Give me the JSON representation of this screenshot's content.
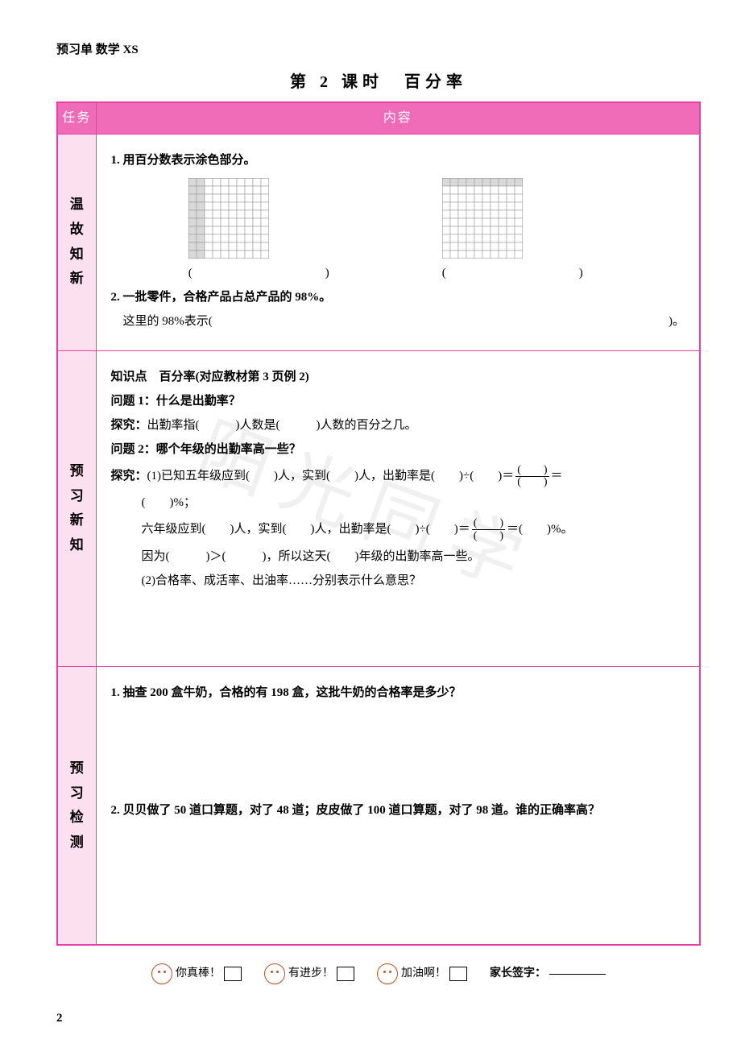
{
  "header": {
    "label": "预习单 数学 XS"
  },
  "title": "第 2 课时　百分率",
  "table_headers": {
    "task": "任务",
    "content": "内容"
  },
  "sections": {
    "s1": {
      "side": "温故知新",
      "q1": "1. 用百分数表示涂色部分。",
      "paren": "(　　　)",
      "q2": "2. 一批零件，合格产品占总产品的 98%。",
      "q2b_left": "　这里的 98%表示(",
      "q2b_right": ")。"
    },
    "s2": {
      "side": "预习新知",
      "kp": "知识点　百分率(对应教材第 3 页例 2)",
      "p1": "问题 1：什么是出勤率？",
      "t1": "探究：出勤率指(　　　)人数是(　　　)人数的百分之几。",
      "p2": "问题 2：哪个年级的出勤率高一些？",
      "t2a": "探究：(1)已知五年级应到(　　)人，实到(　　)人，出勤率是(　　)÷(　　)＝",
      "t2a_tail": "＝",
      "t2b": "(　　)%；",
      "t2c_head": "六年级应到(　　)人，实到(　　)人，出勤率是(　　)÷(　　)＝",
      "t2c_tail": "＝(　　)%。",
      "t2d": "因为(　　　)＞(　　　)，所以这天(　　)年级的出勤率高一些。",
      "t2e": "(2)合格率、成活率、出油率……分别表示什么意思？",
      "frac": {
        "num": "(　　)",
        "den": "(　　)"
      }
    },
    "s3": {
      "side": "预习检测",
      "q1": "1. 抽查 200 盒牛奶，合格的有 198 盒，这批牛奶的合格率是多少？",
      "q2": "2. 贝贝做了 50 道口算题，对了 48 道；皮皮做了 100 道口算题，对了 98 道。谁的正确率高？"
    }
  },
  "footer": {
    "a": "你真棒！",
    "b": "有进步！",
    "c": "加油啊！",
    "sign": "家长签字："
  },
  "page": "2",
  "watermark": "阳光同学",
  "grids": {
    "rows": 10,
    "cols": 10,
    "cell": 10,
    "border": "#999999",
    "shade": "#d9d9d9",
    "g1_shaded_cols": 2,
    "g2_shaded_rows": 1
  },
  "colors": {
    "border": "#e83fa4",
    "header_bg": "#ef6bb8",
    "side_bg": "#fde0ef"
  }
}
